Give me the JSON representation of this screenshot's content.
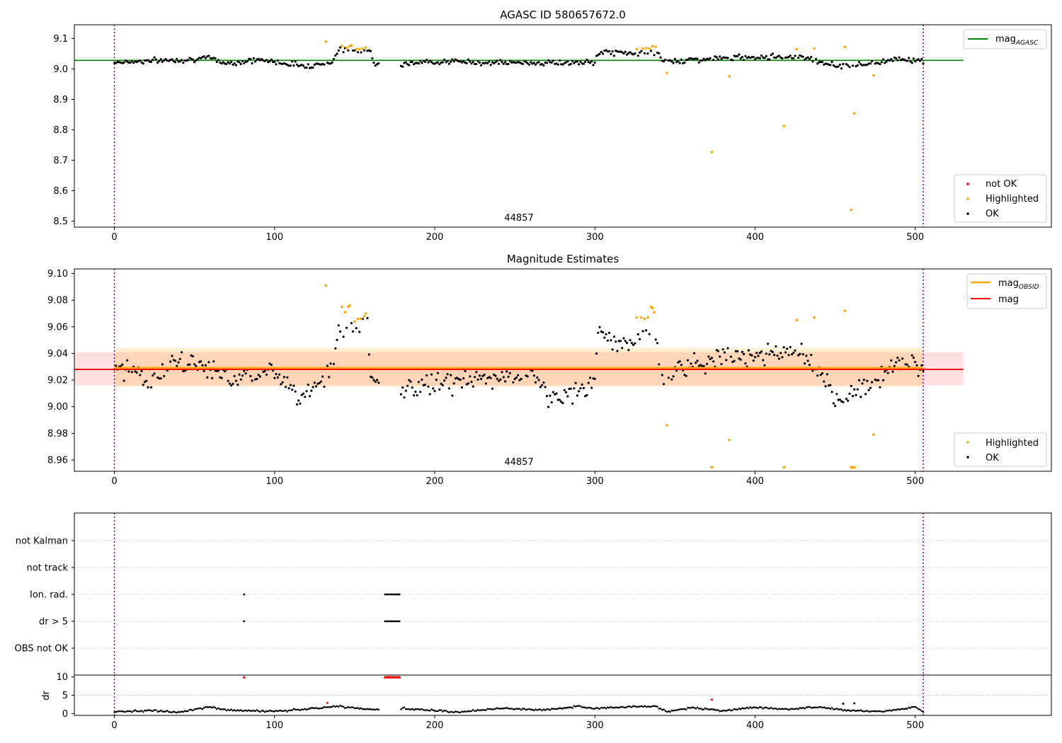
{
  "colors": {
    "ok": "#000000",
    "highlighted": "#ffa500",
    "not_ok": "#ff0000",
    "agasc_line": "#008000",
    "obsid_line": "#ffa500",
    "mag_line": "#ff0000",
    "obs_marker": "#800080"
  },
  "chart_data": [
    {
      "type": "scatter",
      "title": "AGASC ID 580657672.0",
      "xlim": [
        -25,
        585
      ],
      "ylim": [
        8.48,
        9.145
      ],
      "xticks": [
        0,
        100,
        200,
        300,
        400,
        500
      ],
      "xtick_labels": [
        "0",
        "100",
        "200",
        "300",
        "400",
        "500"
      ],
      "yticks": [
        8.5,
        8.6,
        8.7,
        8.8,
        8.9,
        9.0,
        9.1
      ],
      "ytick_labels": [
        "8.5",
        "8.6",
        "8.7",
        "8.8",
        "8.9",
        "9.0",
        "9.1"
      ],
      "obsid_boundaries": [
        0,
        505
      ],
      "obsid_label": "44857",
      "agasc_mag": 9.028,
      "agasc_line_xrange": [
        -25,
        530
      ],
      "ok_baseline": [
        [
          0,
          9.022
        ],
        [
          40,
          9.03
        ],
        [
          60,
          9.035
        ],
        [
          70,
          9.018
        ],
        [
          90,
          9.03
        ],
        [
          120,
          9.01
        ],
        [
          135,
          9.02
        ],
        [
          140,
          9.06
        ],
        [
          160,
          9.06
        ],
        [
          162,
          9.02
        ],
        [
          180,
          9.015
        ],
        [
          200,
          9.025
        ],
        [
          240,
          9.02
        ],
        [
          300,
          9.02
        ],
        [
          302,
          9.055
        ],
        [
          340,
          9.05
        ],
        [
          342,
          9.025
        ],
        [
          400,
          9.04
        ],
        [
          430,
          9.04
        ],
        [
          450,
          9.01
        ],
        [
          470,
          9.015
        ],
        [
          490,
          9.035
        ],
        [
          505,
          9.025
        ]
      ],
      "ok_noise": 0.013,
      "highlighted": [
        [
          132,
          9.09
        ],
        [
          142,
          9.075
        ],
        [
          145,
          9.07
        ],
        [
          147,
          9.075
        ],
        [
          148,
          9.077
        ],
        [
          151,
          9.065
        ],
        [
          153,
          9.065
        ],
        [
          155,
          9.067
        ],
        [
          157,
          9.07
        ],
        [
          326,
          9.065
        ],
        [
          330,
          9.067
        ],
        [
          332,
          9.068
        ],
        [
          334,
          9.067
        ],
        [
          336,
          9.075
        ],
        [
          338,
          9.073
        ],
        [
          345,
          8.987
        ],
        [
          373,
          8.727
        ],
        [
          384,
          8.976
        ],
        [
          418,
          8.812
        ],
        [
          426,
          9.065
        ],
        [
          437,
          9.067
        ],
        [
          456,
          9.072
        ],
        [
          460,
          8.537
        ],
        [
          462,
          8.854
        ],
        [
          474,
          8.979
        ]
      ],
      "legend": {
        "series": [
          "mag_AGASC"
        ],
        "markers": [
          "not OK",
          "Highlighted",
          "OK"
        ]
      }
    },
    {
      "type": "scatter",
      "title": "Magnitude Estimates",
      "xlim": [
        -25,
        585
      ],
      "ylim": [
        8.9515,
        9.1035
      ],
      "xticks": [
        0,
        100,
        200,
        300,
        400,
        500
      ],
      "xtick_labels": [
        "0",
        "100",
        "200",
        "300",
        "400",
        "500"
      ],
      "yticks": [
        8.96,
        8.98,
        9.0,
        9.02,
        9.04,
        9.06,
        9.08,
        9.1
      ],
      "ytick_labels": [
        "8.96",
        "8.98",
        "9.00",
        "9.02",
        "9.04",
        "9.06",
        "9.08",
        "9.10"
      ],
      "obsid_boundaries": [
        0,
        505
      ],
      "obsid_label": "44857",
      "mag_obsid": 9.029,
      "mag_obsid_band": [
        9.015,
        9.044
      ],
      "mag_obsid_xrange": [
        0,
        505
      ],
      "mag": 9.028,
      "mag_band": [
        9.016,
        9.041
      ],
      "mag_xrange": [
        -25,
        530
      ],
      "ok_baseline": [
        [
          0,
          9.025
        ],
        [
          10,
          9.03
        ],
        [
          20,
          9.02
        ],
        [
          40,
          9.033
        ],
        [
          60,
          9.03
        ],
        [
          70,
          9.02
        ],
        [
          90,
          9.028
        ],
        [
          110,
          9.02
        ],
        [
          115,
          9.005
        ],
        [
          125,
          9.018
        ],
        [
          135,
          9.025
        ],
        [
          140,
          9.057
        ],
        [
          158,
          9.06
        ],
        [
          160,
          9.02
        ],
        [
          180,
          9.012
        ],
        [
          200,
          9.018
        ],
        [
          230,
          9.02
        ],
        [
          260,
          9.025
        ],
        [
          275,
          9.005
        ],
        [
          290,
          9.012
        ],
        [
          300,
          9.02
        ],
        [
          302,
          9.055
        ],
        [
          320,
          9.045
        ],
        [
          335,
          9.06
        ],
        [
          342,
          9.025
        ],
        [
          370,
          9.035
        ],
        [
          400,
          9.04
        ],
        [
          430,
          9.04
        ],
        [
          450,
          9.005
        ],
        [
          470,
          9.015
        ],
        [
          490,
          9.035
        ],
        [
          505,
          9.03
        ]
      ],
      "ok_noise": 0.012,
      "highlighted": [
        [
          132,
          9.091
        ],
        [
          142,
          9.075
        ],
        [
          144,
          9.071
        ],
        [
          146,
          9.075
        ],
        [
          147,
          9.076
        ],
        [
          150,
          9.064
        ],
        [
          152,
          9.066
        ],
        [
          154,
          9.066
        ],
        [
          156,
          9.068
        ],
        [
          157,
          9.07
        ],
        [
          326,
          9.067
        ],
        [
          329,
          9.067
        ],
        [
          331,
          9.066
        ],
        [
          333,
          9.067
        ],
        [
          335,
          9.075
        ],
        [
          336,
          9.074
        ],
        [
          337,
          9.071
        ],
        [
          345,
          8.986
        ],
        [
          384,
          8.975
        ],
        [
          426,
          9.065
        ],
        [
          437,
          9.067
        ],
        [
          456,
          9.072
        ],
        [
          474,
          8.979
        ]
      ],
      "off_scale_low": [
        373,
        418,
        460,
        461,
        462
      ],
      "legend": {
        "series": [
          "mag_OBSID",
          "mag"
        ],
        "markers": [
          "Highlighted",
          "OK"
        ]
      }
    },
    {
      "type": "scatter",
      "title": "",
      "xlim": [
        -25,
        585
      ],
      "flag_rows": [
        "not Kalman",
        "not track",
        "Ion. rad.",
        "dr > 5",
        "OBS not OK"
      ],
      "obsid_boundaries": [
        0,
        505
      ],
      "flags": {
        "Ion. rad.": [
          81,
          169,
          170,
          171,
          172,
          173,
          174,
          175,
          176,
          177,
          178
        ],
        "dr > 5": [
          81,
          169,
          170,
          171,
          172,
          173,
          174,
          175,
          176,
          177,
          178
        ]
      }
    },
    {
      "type": "scatter",
      "title": "",
      "ylabel": "dr",
      "xlim": [
        -25,
        585
      ],
      "ylim": [
        -0.5,
        10.5
      ],
      "xticks": [
        0,
        100,
        200,
        300,
        400,
        500
      ],
      "xtick_labels": [
        "0",
        "100",
        "200",
        "300",
        "400",
        "500"
      ],
      "yticks": [
        0,
        5,
        10
      ],
      "ytick_labels": [
        "0",
        "5",
        "10"
      ],
      "obsid_boundaries": [
        0,
        505
      ],
      "ok_baseline": [
        [
          0,
          0.5
        ],
        [
          20,
          0.8
        ],
        [
          40,
          0.4
        ],
        [
          60,
          1.8
        ],
        [
          70,
          1.0
        ],
        [
          100,
          0.6
        ],
        [
          120,
          1.2
        ],
        [
          140,
          2.0
        ],
        [
          150,
          1.5
        ],
        [
          168,
          1.0
        ],
        [
          180,
          1.4
        ],
        [
          200,
          0.8
        ],
        [
          215,
          0.4
        ],
        [
          240,
          1.4
        ],
        [
          270,
          1.0
        ],
        [
          290,
          2.0
        ],
        [
          300,
          1.5
        ],
        [
          320,
          1.8
        ],
        [
          338,
          2.0
        ],
        [
          345,
          0.5
        ],
        [
          360,
          1.6
        ],
        [
          380,
          0.8
        ],
        [
          400,
          1.7
        ],
        [
          420,
          1.2
        ],
        [
          440,
          1.8
        ],
        [
          460,
          0.8
        ],
        [
          480,
          0.6
        ],
        [
          500,
          1.8
        ],
        [
          505,
          0.4
        ]
      ],
      "ok_noise": 0.35,
      "red_capped": [
        81,
        169,
        170,
        171,
        172,
        173,
        174,
        175,
        176,
        177,
        178
      ],
      "red_points": [
        [
          133,
          2.9
        ],
        [
          373,
          3.8
        ]
      ],
      "orange_points": [
        [
          455,
          2.7
        ],
        [
          462,
          2.8
        ]
      ]
    }
  ],
  "legend_labels": {
    "mag_agasc_main": "mag",
    "mag_agasc_sub": "AGASC",
    "mag_obsid_main": "mag",
    "mag_obsid_sub": "OBSID",
    "mag": "mag",
    "not_ok": "not OK",
    "highlighted": "Highlighted",
    "ok": "OK"
  }
}
